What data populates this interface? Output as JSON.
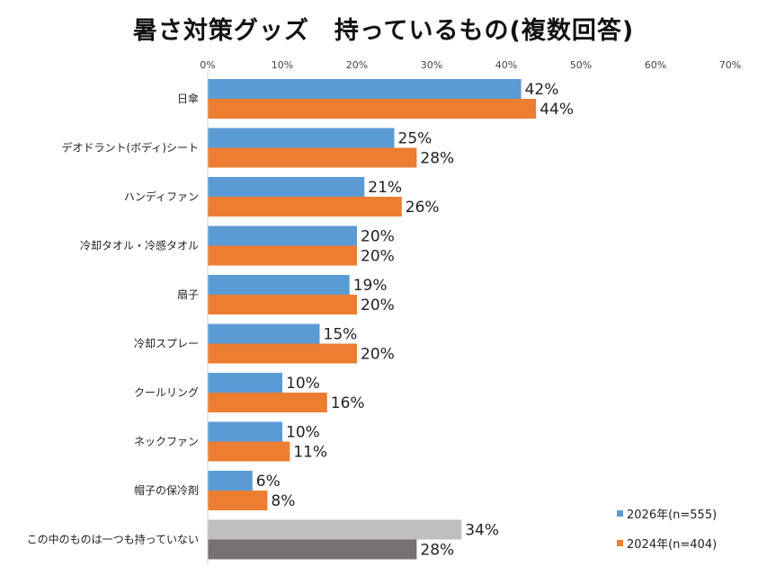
{
  "chart_data": {
    "type": "bar",
    "orientation": "horizontal",
    "title": "暑さ対策グッズ　持っているもの(複数回答)",
    "xlim": [
      0,
      70
    ],
    "x_ticks": [
      "0%",
      "10%",
      "20%",
      "30%",
      "40%",
      "50%",
      "60%",
      "70%"
    ],
    "categories": [
      "日傘",
      "デオドラント(ボディ)シート",
      "ハンディファン",
      "冷却タオル・冷感タオル",
      "扇子",
      "冷却スプレー",
      "クールリング",
      "ネックファン",
      "帽子の保冷剤",
      "この中のものは一つも持っていない"
    ],
    "series": [
      {
        "name": "2026年(n=555)",
        "values": [
          42,
          25,
          21,
          20,
          19,
          15,
          10,
          10,
          6,
          34
        ],
        "labels": [
          "42%",
          "25%",
          "21%",
          "20%",
          "19%",
          "15%",
          "10%",
          "10%",
          "6%",
          "34%"
        ]
      },
      {
        "name": "2024年(n=404)",
        "values": [
          44,
          28,
          26,
          20,
          20,
          20,
          16,
          11,
          8,
          28
        ],
        "labels": [
          "44%",
          "28%",
          "26%",
          "20%",
          "20%",
          "20%",
          "16%",
          "11%",
          "8%",
          "28%"
        ]
      }
    ],
    "colors": {
      "series_2026": "#5b9bd5",
      "series_2024": "#ed7d31",
      "none_2026": "#bfbfbf",
      "none_2024": "#767171"
    },
    "legend_position": "bottom-right"
  }
}
